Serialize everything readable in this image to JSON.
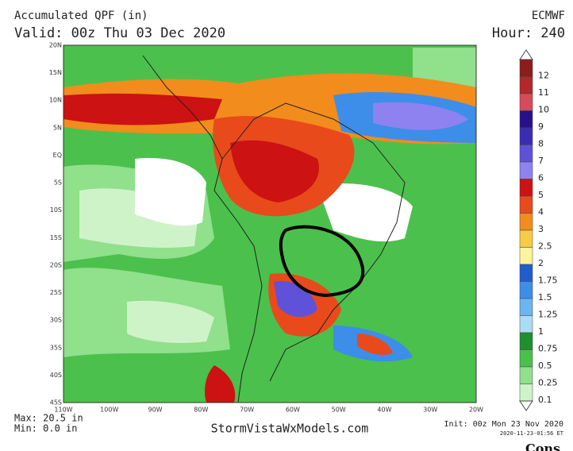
{
  "header": {
    "title": "Accumulated QPF (in)",
    "valid": "Valid: 00z Thu 03 Dec 2020",
    "model": "ECMWF",
    "hour": "Hour: 240"
  },
  "map": {
    "lat_labels": [
      "20N",
      "15N",
      "10N",
      "5N",
      "EQ",
      "5S",
      "10S",
      "15S",
      "20S",
      "25S",
      "30S",
      "35S",
      "40S",
      "45S"
    ],
    "lon_labels": [
      "110W",
      "100W",
      "90W",
      "80W",
      "70W",
      "60W",
      "50W",
      "40W",
      "30W",
      "20W"
    ]
  },
  "legend": [
    {
      "label": "12",
      "color": "#8e1c1c"
    },
    {
      "label": "11",
      "color": "#b5272a"
    },
    {
      "label": "10",
      "color": "#d84a5a"
    },
    {
      "label": "9",
      "color": "#28108a"
    },
    {
      "label": "8",
      "color": "#3b2db3"
    },
    {
      "label": "7",
      "color": "#5f52d8"
    },
    {
      "label": "6",
      "color": "#8e82f0"
    },
    {
      "label": "5",
      "color": "#cc1212"
    },
    {
      "label": "4",
      "color": "#e84a1c"
    },
    {
      "label": "3",
      "color": "#f28c1c"
    },
    {
      "label": "2.5",
      "color": "#f7cb45"
    },
    {
      "label": "2",
      "color": "#fff39c"
    },
    {
      "label": "1.75",
      "color": "#1f5fcc"
    },
    {
      "label": "1.5",
      "color": "#3d8ee8"
    },
    {
      "label": "1.25",
      "color": "#6cb5f0"
    },
    {
      "label": "1",
      "color": "#abdcf7"
    },
    {
      "label": "0.75",
      "color": "#1e8f2e"
    },
    {
      "label": "0.5",
      "color": "#4cc04c"
    },
    {
      "label": "0.25",
      "color": "#90e08c"
    },
    {
      "label": "0.1",
      "color": "#cff3c8"
    }
  ],
  "footer": {
    "max": "Max: 20.5 in",
    "min": "Min: 0.0 in",
    "site": "StormVistaWxModels.com",
    "init": "Init: 00z Mon 23 Nov 2020",
    "timestamp": "2020-11-23-01:56 ET",
    "cropped": "Cons"
  }
}
